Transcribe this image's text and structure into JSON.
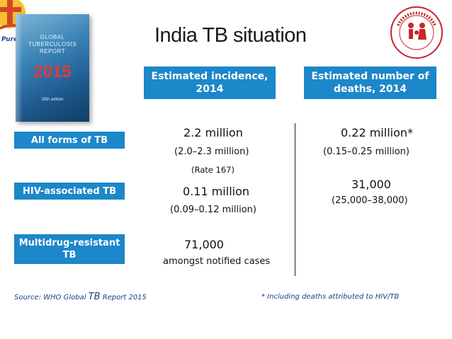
{
  "title": "India TB situation",
  "cover": {
    "line1": "GLOBAL",
    "line2": "TUBERCULOSIS",
    "line3": "REPORT",
    "year": "2015",
    "edition": "20th edition"
  },
  "headers": {
    "incidence": "Estimated incidence, 2014",
    "deaths": "Estimated number of deaths, 2014"
  },
  "rows": {
    "all": {
      "label": "All forms of TB",
      "incidence": "2.2 million",
      "incidence_range": "(2.0–2.3 million)",
      "rate": "(Rate  167)",
      "deaths": "0.22 million*",
      "deaths_range": "(0.15–0.25 million)"
    },
    "hiv": {
      "label": "HIV-associated TB",
      "incidence": "0.11 million",
      "incidence_range": "(0.09–0.12 million)",
      "deaths": "31,000",
      "deaths_range": "(25,000–38,000)"
    },
    "mdr": {
      "label": "Multidrug-resistant TB",
      "incidence": "71,000",
      "incidence_note": "amongst notified cases"
    }
  },
  "footer": {
    "source_prefix": "Source: WHO Global ",
    "source_tb": "TB",
    "source_suffix": " Report 2015",
    "footnote": "* Including deaths attributed to HIV/TB"
  },
  "colors": {
    "header_blue": "#1c87c9",
    "note_blue": "#1f3c87"
  },
  "icons": {
    "left_logo": "stop-tb-logo-icon",
    "right_logo": "national-health-mission-logo-icon"
  }
}
